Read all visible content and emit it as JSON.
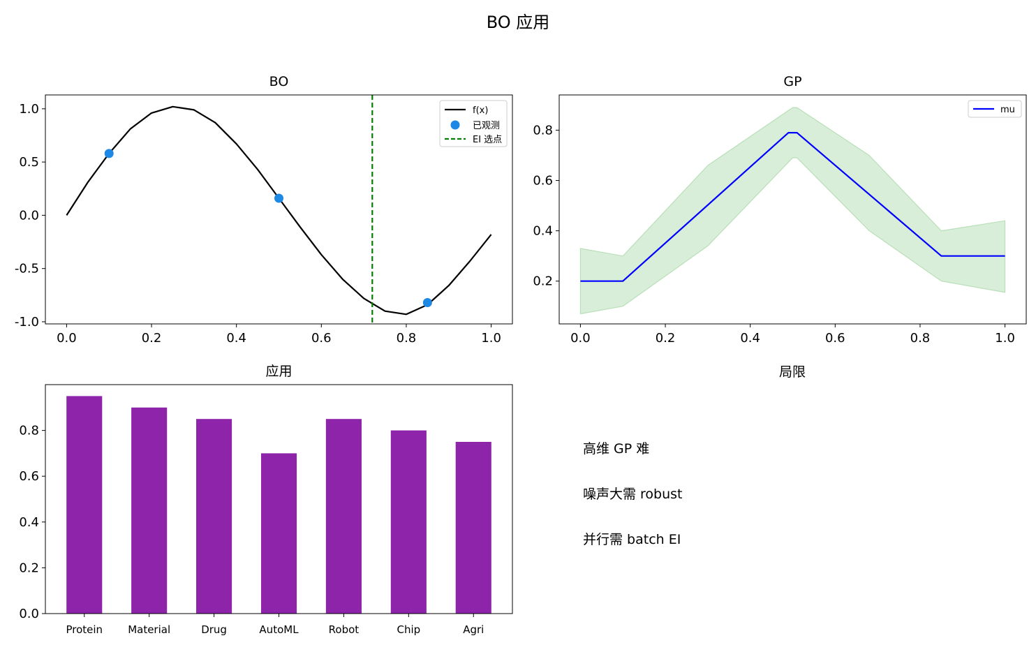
{
  "suptitle": "BO 应用",
  "chart_data": [
    {
      "type": "line",
      "title": "BO",
      "xlim": [
        -0.05,
        1.05
      ],
      "ylim": [
        -1.02,
        1.13
      ],
      "xticks": [
        0.0,
        0.2,
        0.4,
        0.6,
        0.8,
        1.0
      ],
      "xticklabels": [
        "0.0",
        "0.2",
        "0.4",
        "0.6",
        "0.8",
        "1.0"
      ],
      "yticks": [
        -1.0,
        -0.5,
        0.0,
        0.5,
        1.0
      ],
      "yticklabels": [
        "-1.0",
        "-0.5",
        "0.0",
        "0.5",
        "1.0"
      ],
      "grid": false,
      "legend_loc": "upper right",
      "curve": {
        "name": "f(x)",
        "color": "#000000",
        "x": [
          0.0,
          0.05,
          0.1,
          0.15,
          0.2,
          0.25,
          0.3,
          0.35,
          0.4,
          0.45,
          0.5,
          0.55,
          0.6,
          0.65,
          0.7,
          0.75,
          0.8,
          0.85,
          0.9,
          0.95,
          1.0
        ],
        "y": [
          0.0,
          0.31,
          0.58,
          0.81,
          0.96,
          1.02,
          0.99,
          0.87,
          0.67,
          0.43,
          0.16,
          -0.11,
          -0.37,
          -0.6,
          -0.78,
          -0.9,
          -0.93,
          -0.84,
          -0.66,
          -0.43,
          -0.18
        ]
      },
      "observed": {
        "name": "已观测",
        "color": "#1e88e5",
        "x": [
          0.1,
          0.5,
          0.85
        ],
        "y": [
          0.58,
          0.16,
          -0.82
        ]
      },
      "ei_line": {
        "name": "EI 选点",
        "color": "#008000",
        "x": 0.72
      }
    },
    {
      "type": "line",
      "title": "GP",
      "xlim": [
        -0.05,
        1.05
      ],
      "ylim": [
        0.03,
        0.94
      ],
      "xticks": [
        0.0,
        0.2,
        0.4,
        0.6,
        0.8,
        1.0
      ],
      "xticklabels": [
        "0.0",
        "0.2",
        "0.4",
        "0.6",
        "0.8",
        "1.0"
      ],
      "yticks": [
        0.2,
        0.4,
        0.6,
        0.8
      ],
      "yticklabels": [
        "0.2",
        "0.4",
        "0.6",
        "0.8"
      ],
      "grid": false,
      "legend_loc": "upper right",
      "mu": {
        "name": "mu",
        "color": "#0000ff",
        "x": [
          0.0,
          0.1,
          0.49,
          0.51,
          0.85,
          1.0
        ],
        "y": [
          0.2,
          0.2,
          0.79,
          0.79,
          0.3,
          0.3
        ]
      },
      "band": {
        "color": "#2ca02c",
        "x": [
          0.0,
          0.1,
          0.3,
          0.5,
          0.51,
          0.68,
          0.85,
          1.0
        ],
        "upper": [
          0.33,
          0.3,
          0.66,
          0.89,
          0.89,
          0.7,
          0.4,
          0.44
        ],
        "lower": [
          0.07,
          0.1,
          0.34,
          0.69,
          0.69,
          0.4,
          0.2,
          0.155
        ]
      }
    },
    {
      "type": "bar",
      "title": "应用",
      "categories": [
        "Protein",
        "Material",
        "Drug",
        "AutoML",
        "Robot",
        "Chip",
        "Agri"
      ],
      "values": [
        0.95,
        0.9,
        0.85,
        0.7,
        0.85,
        0.8,
        0.75
      ],
      "color": "#8e24aa",
      "ylim": [
        0,
        1.0
      ],
      "yticks": [
        0.0,
        0.2,
        0.4,
        0.6,
        0.8
      ],
      "yticklabels": [
        "0.0",
        "0.2",
        "0.4",
        "0.6",
        "0.8"
      ],
      "grid": false
    }
  ],
  "limits": {
    "title": "局限",
    "items": [
      "高维 GP 难",
      "噪声大需 robust",
      "并行需 batch EI"
    ]
  }
}
